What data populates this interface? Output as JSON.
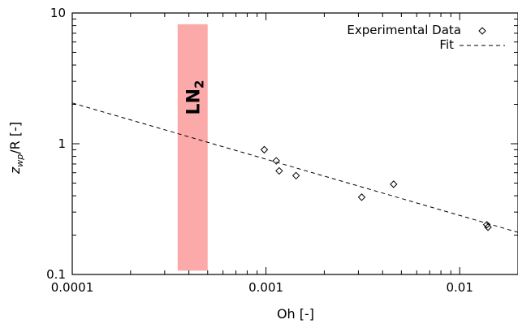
{
  "chart_data": {
    "type": "scatter",
    "xscale": "log",
    "yscale": "log",
    "xlabel": "Oh [-]",
    "ylabel_main": "z",
    "ylabel_sub": "wp",
    "ylabel_rest": "/R [-]",
    "xlim": [
      0.0001,
      0.02
    ],
    "ylim": [
      0.1,
      10
    ],
    "xticks": [
      {
        "value": 0.0001,
        "label": "0.0001"
      },
      {
        "value": 0.001,
        "label": "0.001"
      },
      {
        "value": 0.01,
        "label": "0.01"
      }
    ],
    "yticks": [
      {
        "value": 0.1,
        "label": "0.1"
      },
      {
        "value": 1,
        "label": "1"
      },
      {
        "value": 10,
        "label": "10"
      }
    ],
    "series": [
      {
        "name": "Experimental Data",
        "marker": "diamond",
        "points": [
          {
            "x": 0.00098,
            "y": 0.9
          },
          {
            "x": 0.00113,
            "y": 0.74
          },
          {
            "x": 0.00117,
            "y": 0.62
          },
          {
            "x": 0.00143,
            "y": 0.57
          },
          {
            "x": 0.00312,
            "y": 0.39
          },
          {
            "x": 0.00456,
            "y": 0.49
          },
          {
            "x": 0.0138,
            "y": 0.24
          },
          {
            "x": 0.014,
            "y": 0.23
          }
        ]
      },
      {
        "name": "Fit",
        "line": "dashed",
        "points": [
          {
            "x": 0.0001,
            "y": 2.05
          },
          {
            "x": 0.02,
            "y": 0.21
          }
        ]
      }
    ],
    "band": {
      "label_main": "LN",
      "label_sub": "2",
      "x_from": 0.00035,
      "x_to": 0.0005,
      "y_from": 0.107,
      "y_to": 8.2,
      "color": "#fba9a9"
    },
    "legend_position": "top-right",
    "grid": false
  }
}
